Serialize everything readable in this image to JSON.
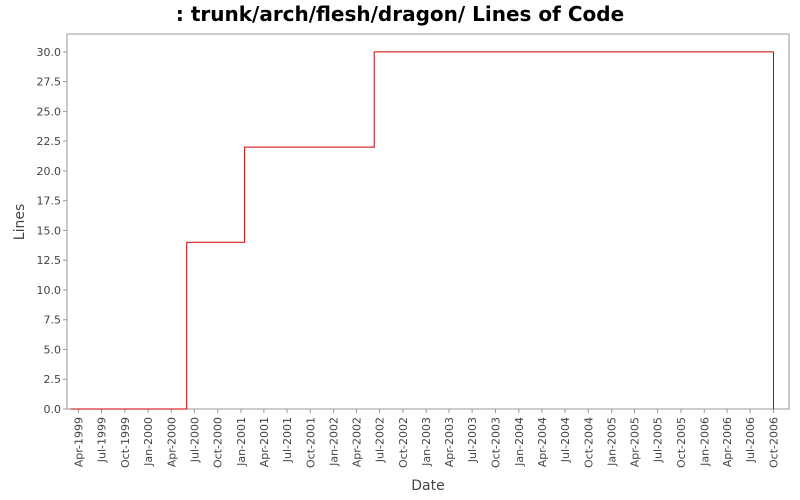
{
  "chart_data": {
    "type": "line",
    "title": ": trunk/arch/flesh/dragon/ Lines of Code",
    "xlabel": "Date",
    "ylabel": "Lines",
    "ylim": [
      0,
      31.5
    ],
    "xlim": [
      "1999-02-15",
      "2006-12-01"
    ],
    "grid": false,
    "step": true,
    "line_color": "#cc0000",
    "x_ticks": [
      "Apr-1999",
      "Jul-1999",
      "Oct-1999",
      "Jan-2000",
      "Apr-2000",
      "Jul-2000",
      "Oct-2000",
      "Jan-2001",
      "Apr-2001",
      "Jul-2001",
      "Oct-2001",
      "Jan-2002",
      "Apr-2002",
      "Jul-2002",
      "Oct-2002",
      "Jan-2003",
      "Apr-2003",
      "Jul-2003",
      "Oct-2003",
      "Jan-2004",
      "Apr-2004",
      "Jul-2004",
      "Oct-2004",
      "Jan-2005",
      "Apr-2005",
      "Jul-2005",
      "Oct-2005",
      "Jan-2006",
      "Apr-2006",
      "Jul-2006",
      "Oct-2006"
    ],
    "y_ticks": [
      "0.0",
      "2.5",
      "5.0",
      "7.5",
      "10.0",
      "12.5",
      "15.0",
      "17.5",
      "20.0",
      "22.5",
      "25.0",
      "27.5",
      "30.0"
    ],
    "series": [
      {
        "x": [
          "1999-03-01",
          "2000-06-01",
          "2000-06-01",
          "2001-01-15",
          "2001-01-15",
          "2002-06-10",
          "2002-06-10",
          "2006-10-01",
          "2006-10-01"
        ],
        "y": [
          0,
          0,
          14,
          14,
          22,
          22,
          30,
          30,
          0
        ]
      }
    ]
  }
}
